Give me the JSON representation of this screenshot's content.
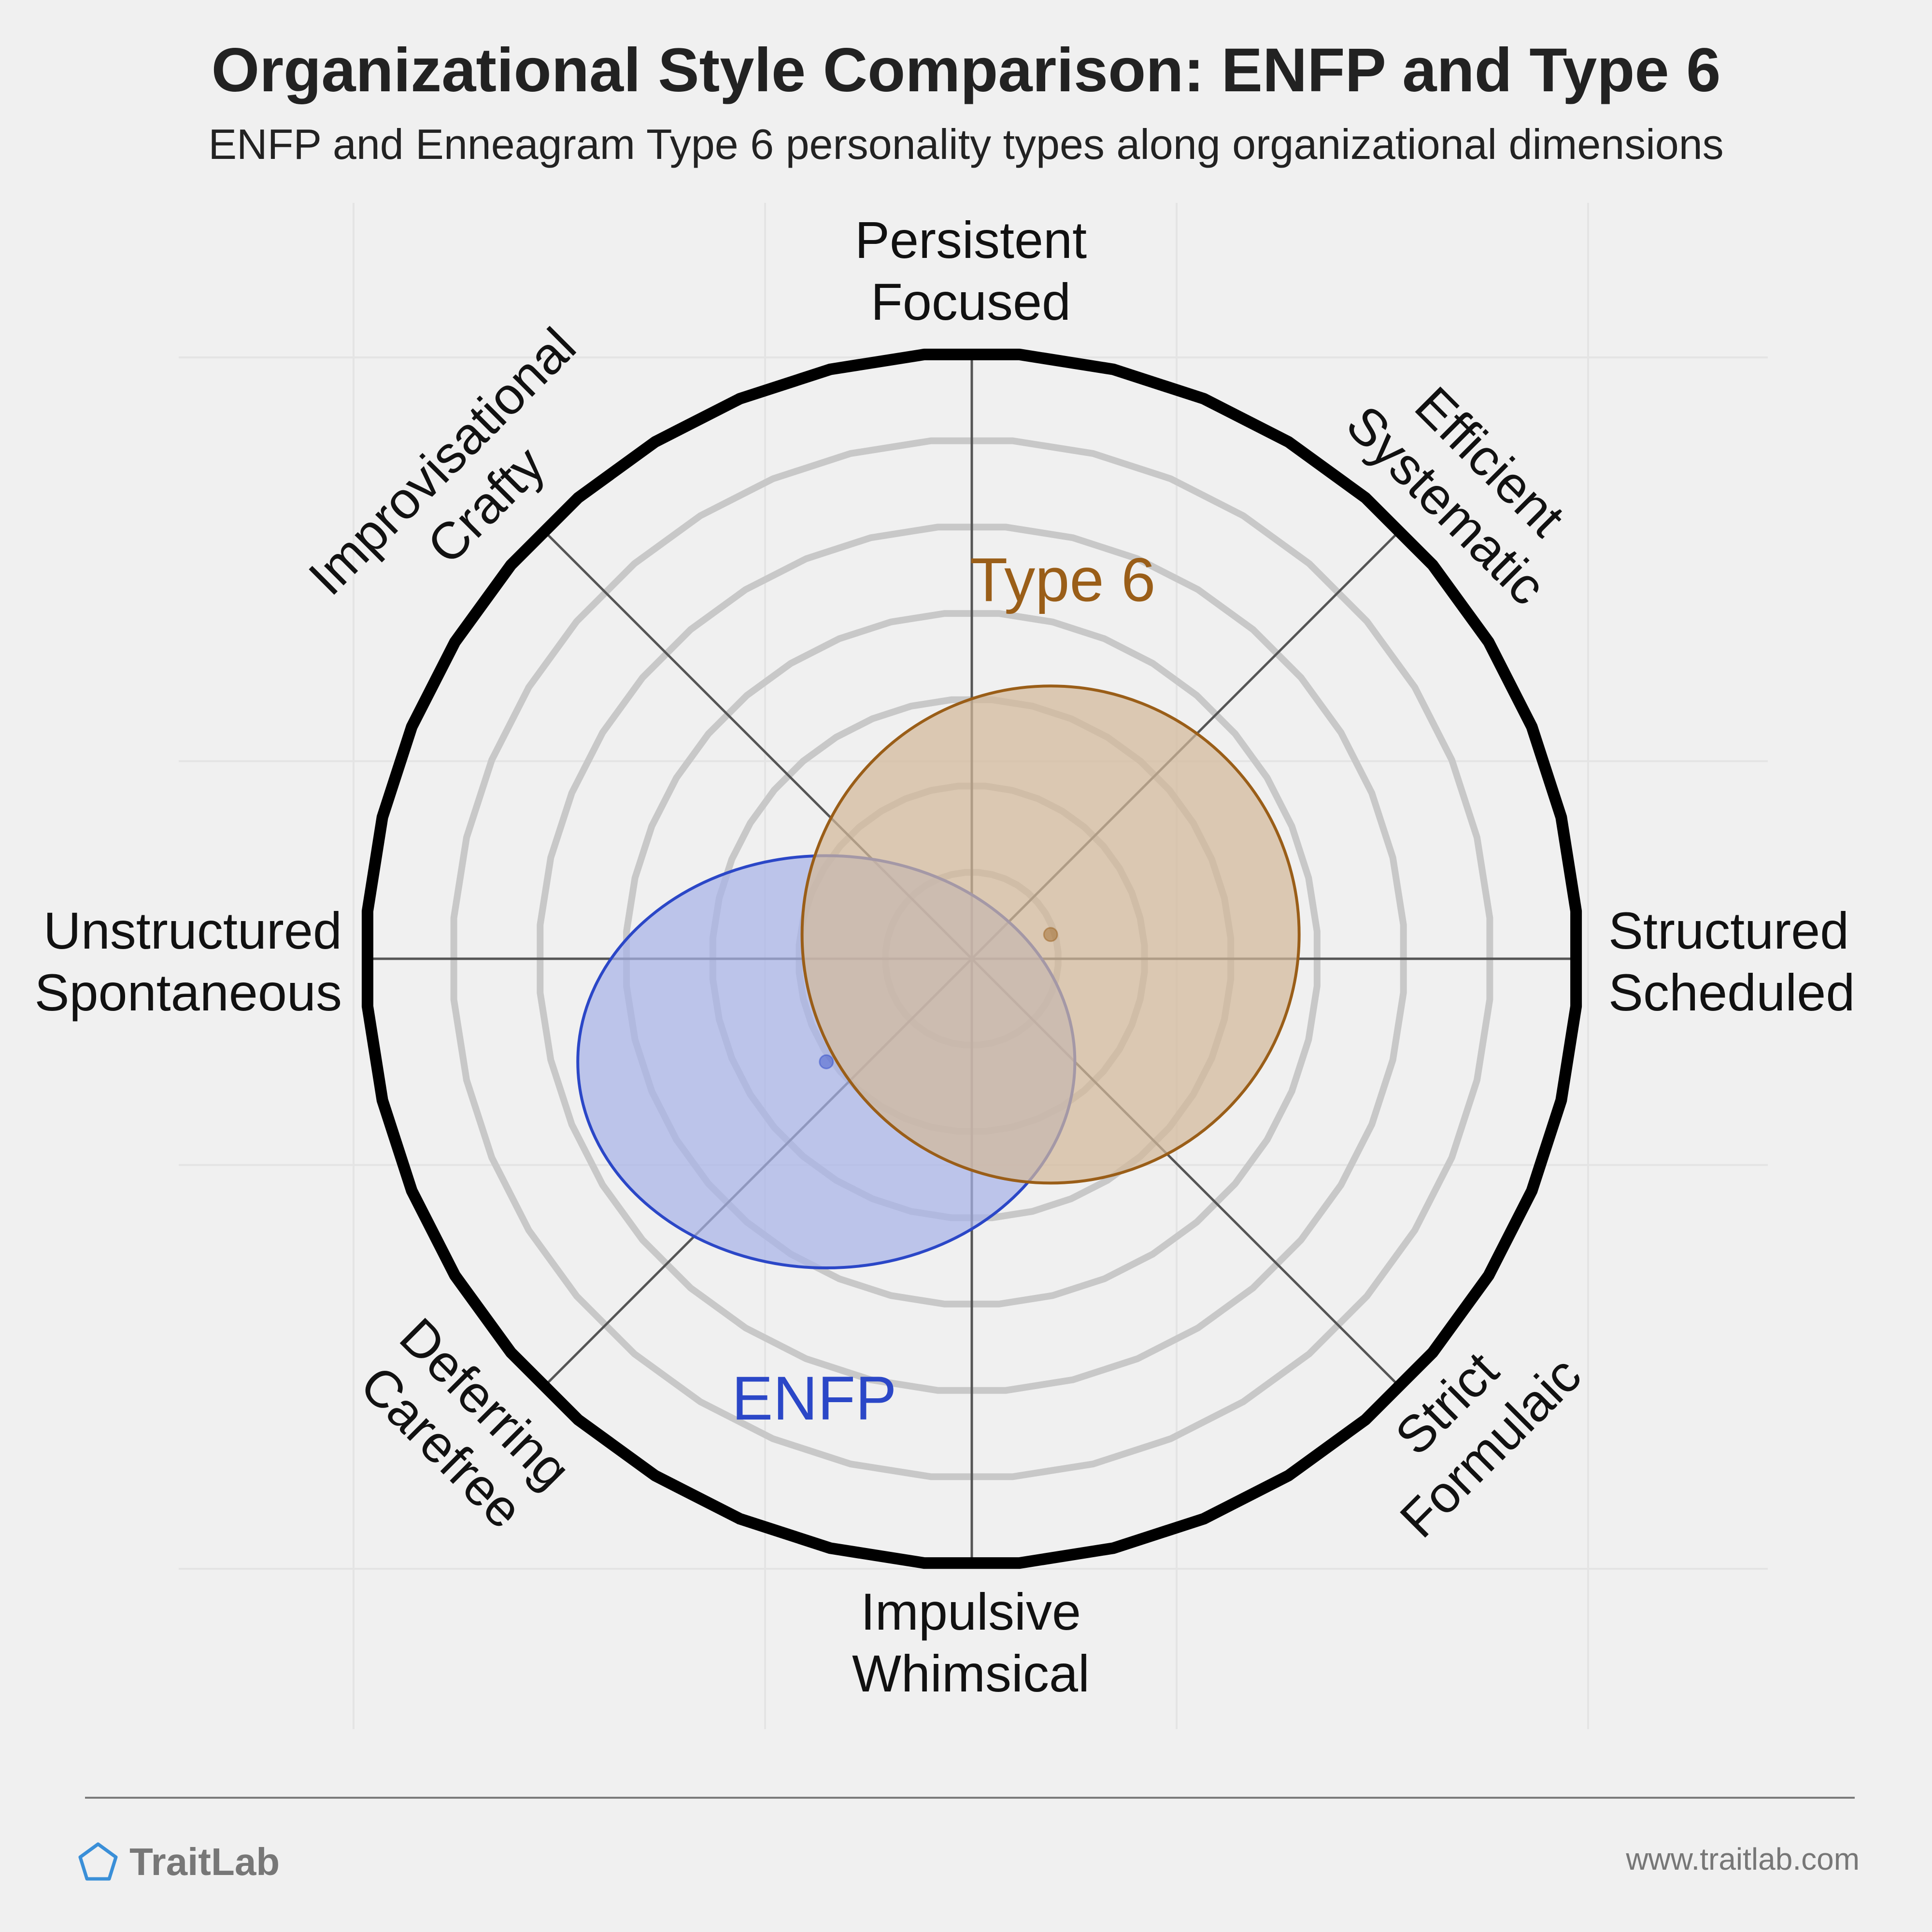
{
  "header": {
    "title": "Organizational Style Comparison: ENFP and Type 6",
    "subtitle": "ENFP and Enneagram Type 6 personality types along organizational dimensions"
  },
  "chart_data": {
    "type": "radar-overlap",
    "axes": [
      {
        "label": [
          "Persistent",
          "Focused"
        ]
      },
      {
        "label": [
          "Efficient",
          "Systematic"
        ]
      },
      {
        "label": [
          "Structured",
          "Scheduled"
        ]
      },
      {
        "label": [
          "Strict",
          "Formulaic"
        ]
      },
      {
        "label": [
          "Impulsive",
          "Whimsical"
        ]
      },
      {
        "label": [
          "Deferring",
          "Carefree"
        ]
      },
      {
        "label": [
          "Unstructured",
          "Spontaneous"
        ]
      },
      {
        "label": [
          "Improvisational",
          "Crafty"
        ]
      }
    ],
    "rings": 6,
    "range": [
      -1,
      1
    ],
    "series": [
      {
        "name": "ENFP",
        "center": [
          -0.24,
          -0.17
        ],
        "spread": [
          0.41,
          0.34
        ],
        "color": "#2b47c7",
        "fill": "#a8b3e8"
      },
      {
        "name": "Type 6",
        "center": [
          0.13,
          0.04
        ],
        "spread": [
          0.41,
          0.41
        ],
        "color": "#9a5e18",
        "fill": "#d2b89a"
      }
    ]
  },
  "footer": {
    "brand": "TraitLab",
    "brand_icon": "pentagon-icon",
    "url": "www.traitlab.com"
  },
  "colors": {
    "background": "#f0f0f0",
    "outer_ring": "#000000",
    "ring": "#c8c8c8",
    "axis": "#555555",
    "brand_icon": "#3a8fd8"
  }
}
